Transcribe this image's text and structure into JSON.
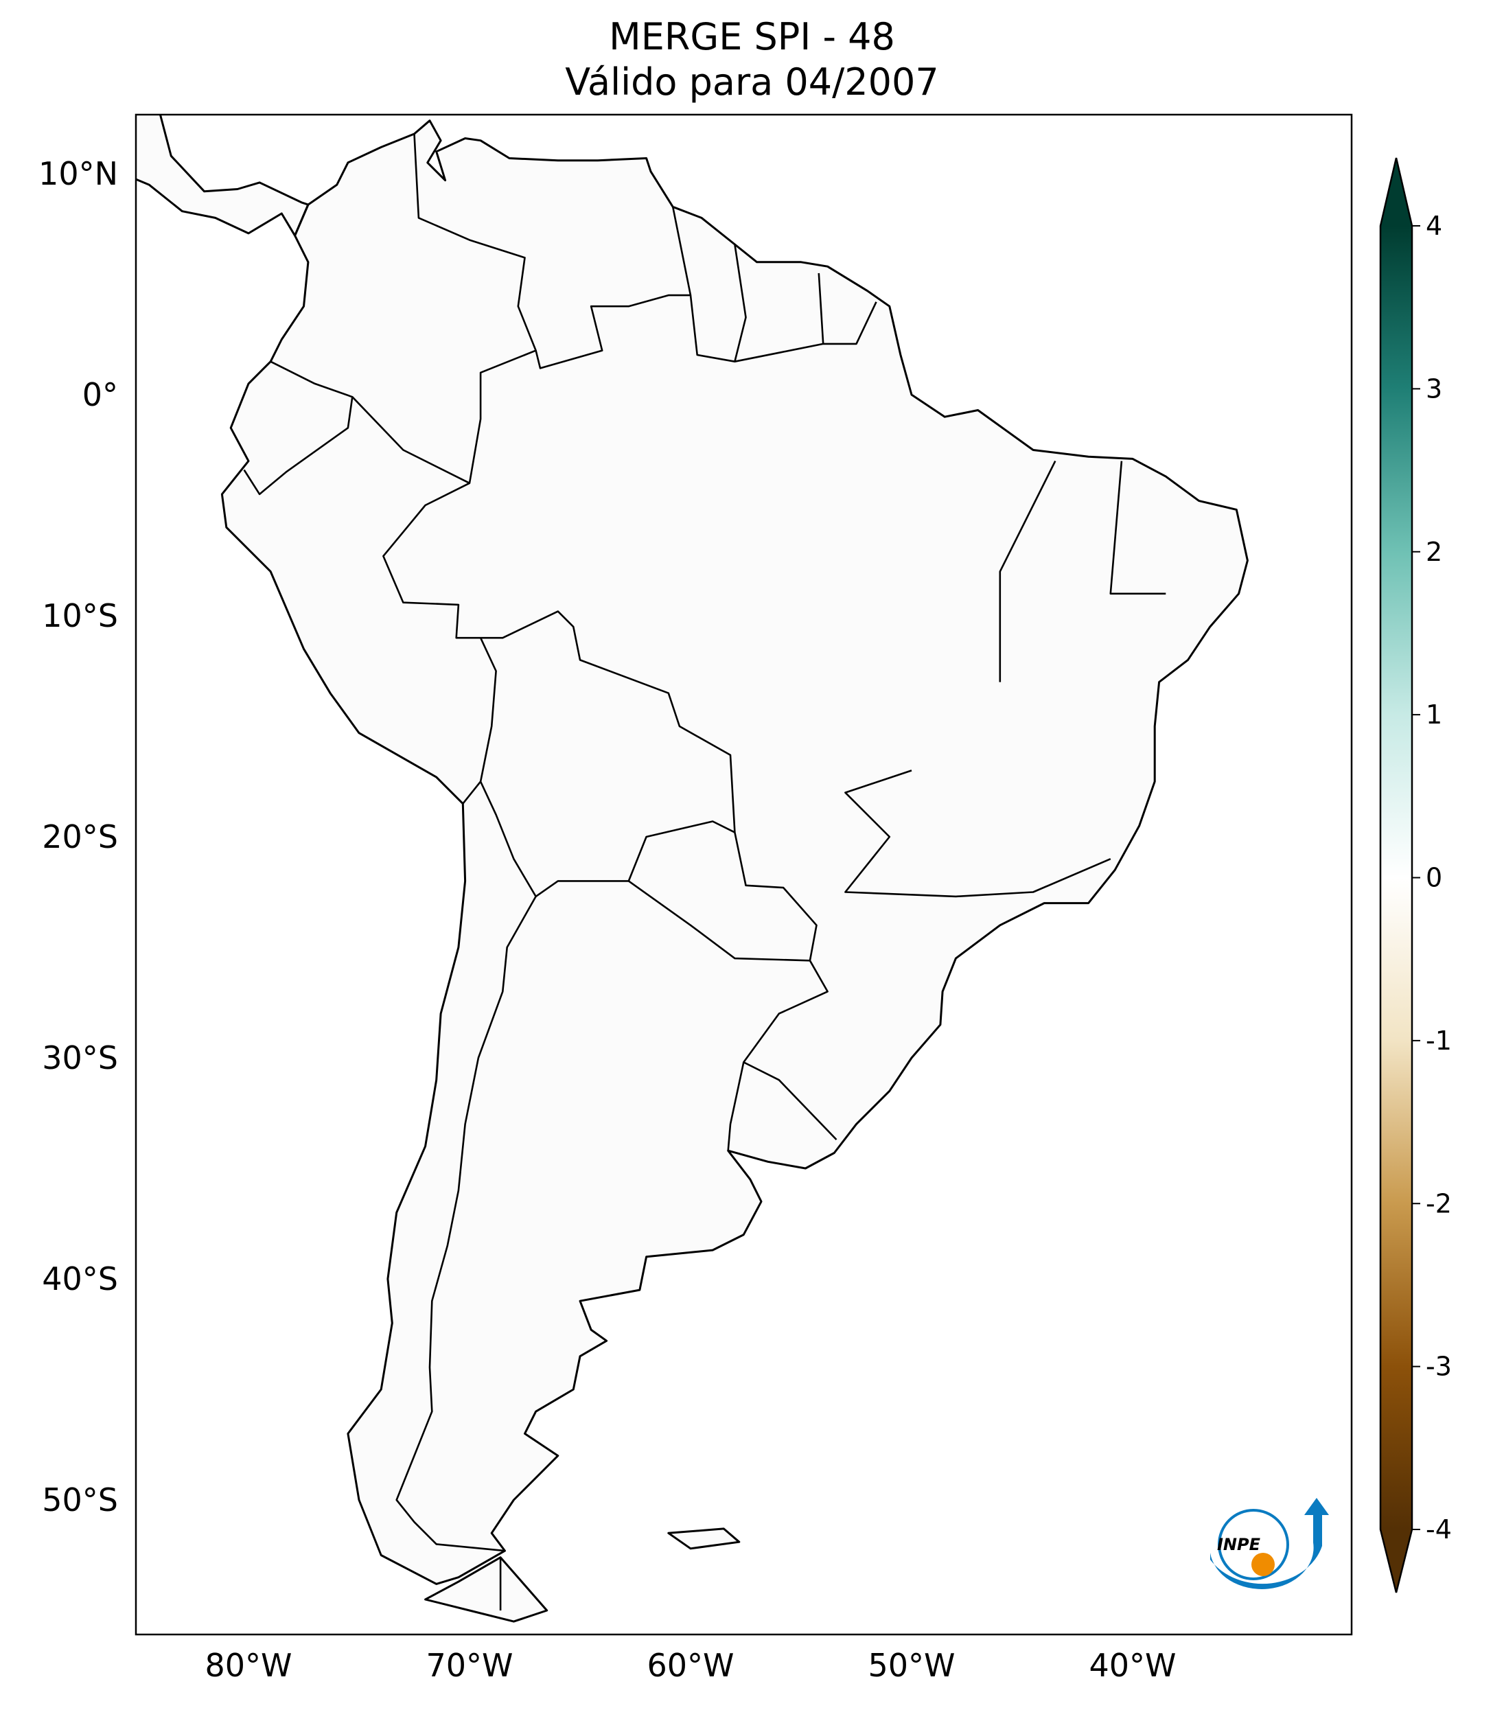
{
  "header": {
    "title_line1": "MERGE   SPI - 48",
    "title_line2": "Válido para 04/2007"
  },
  "map": {
    "projection": "PlateCarree",
    "extent_lon": [
      -85,
      -30
    ],
    "extent_lat": [
      -56,
      12.7
    ],
    "lon_ticks": [
      {
        "value": -80,
        "label": "80°W"
      },
      {
        "value": -70,
        "label": "70°W"
      },
      {
        "value": -60,
        "label": "60°W"
      },
      {
        "value": -50,
        "label": "50°W"
      },
      {
        "value": -40,
        "label": "40°W"
      }
    ],
    "lat_ticks": [
      {
        "value": 10,
        "label": "10°N"
      },
      {
        "value": 0,
        "label": "0°"
      },
      {
        "value": -10,
        "label": "10°S"
      },
      {
        "value": -20,
        "label": "20°S"
      },
      {
        "value": -30,
        "label": "30°S"
      },
      {
        "value": -40,
        "label": "40°S"
      },
      {
        "value": -50,
        "label": "50°S"
      }
    ],
    "variable": "SPI-48"
  },
  "colorbar": {
    "colormap": "BrBG",
    "range": [
      -4,
      4
    ],
    "extend": "both",
    "ticks": [
      {
        "value": 4,
        "label": "4"
      },
      {
        "value": 3,
        "label": "3"
      },
      {
        "value": 2,
        "label": "2"
      },
      {
        "value": 1,
        "label": "1"
      },
      {
        "value": 0,
        "label": "0"
      },
      {
        "value": -1,
        "label": "-1"
      },
      {
        "value": -2,
        "label": "-2"
      },
      {
        "value": -3,
        "label": "-3"
      },
      {
        "value": -4,
        "label": "-4"
      }
    ],
    "colors": {
      "-4": "#543005",
      "-3": "#8c510a",
      "-2": "#c99a4e",
      "-1": "#f2e4c4",
      "0": "#ffffff",
      "1": "#c7eae5",
      "2": "#6fc1b4",
      "3": "#1f7f75",
      "4": "#003c30"
    }
  },
  "logo": {
    "text": "INPE",
    "colors": {
      "arc": "#0a7bc1",
      "dot": "#f08c00"
    }
  }
}
